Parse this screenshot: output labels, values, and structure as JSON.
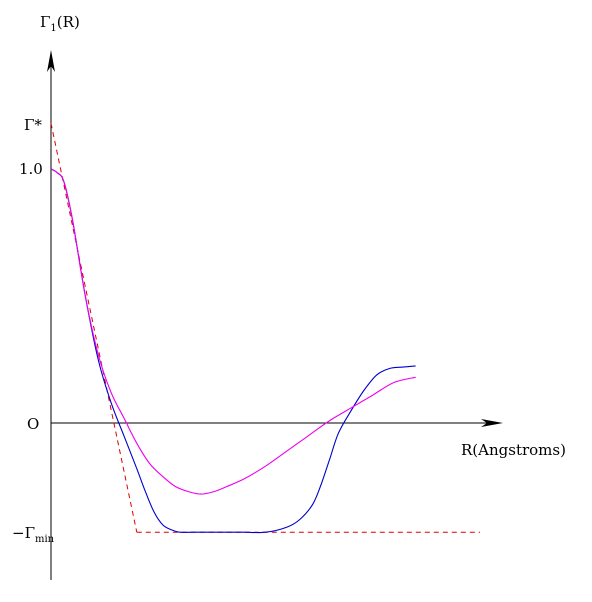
{
  "chart_data": {
    "type": "line",
    "title": "",
    "ylabel": {
      "main": "Γ",
      "sub": "1",
      "suffix": "(R)"
    },
    "xlabel": "R(Angstroms)",
    "y_tick_labels": {
      "gamma_star": "Γ*",
      "one": "1.0",
      "zero": "O",
      "gamma_min": {
        "prefix": "−Γ",
        "sub": "min"
      }
    },
    "y_values_marked": {
      "gamma_star": 1.18,
      "one": 1.0,
      "zero": 0.0,
      "gamma_min": -0.43
    },
    "xlim": [
      0,
      1.0
    ],
    "ylim": [
      -0.62,
      1.45
    ],
    "grid": false,
    "legend": "none",
    "colors": {
      "axis": "#000000",
      "series1": "#0000cc",
      "series2": "#ee00ee",
      "guide": "#dd0000"
    },
    "series": [
      {
        "color": "#0000cc",
        "x": [
          0,
          0.015,
          0.03,
          0.05,
          0.08,
          0.11,
          0.14,
          0.17,
          0.2,
          0.22,
          0.24,
          0.26,
          0.28,
          0.3,
          0.33,
          0.36,
          0.4,
          0.45,
          0.5,
          0.55,
          0.58,
          0.61,
          0.63,
          0.65,
          0.67,
          0.7,
          0.73,
          0.76,
          0.79,
          0.82,
          0.85
        ],
        "y": [
          1.0,
          0.985,
          0.95,
          0.8,
          0.5,
          0.25,
          0.08,
          -0.05,
          -0.18,
          -0.27,
          -0.35,
          -0.4,
          -0.42,
          -0.43,
          -0.43,
          -0.43,
          -0.43,
          -0.43,
          -0.43,
          -0.41,
          -0.38,
          -0.32,
          -0.24,
          -0.14,
          -0.04,
          0.05,
          0.13,
          0.19,
          0.215,
          0.22,
          0.225
        ]
      },
      {
        "color": "#ee00ee",
        "x": [
          0,
          0.015,
          0.03,
          0.05,
          0.08,
          0.11,
          0.14,
          0.17,
          0.2,
          0.23,
          0.26,
          0.29,
          0.32,
          0.35,
          0.38,
          0.41,
          0.45,
          0.5,
          0.55,
          0.6,
          0.65,
          0.7,
          0.75,
          0.8,
          0.85
        ],
        "y": [
          1.0,
          0.985,
          0.95,
          0.8,
          0.5,
          0.27,
          0.12,
          0.02,
          -0.08,
          -0.16,
          -0.21,
          -0.25,
          -0.27,
          -0.28,
          -0.27,
          -0.25,
          -0.22,
          -0.17,
          -0.11,
          -0.05,
          0.01,
          0.06,
          0.11,
          0.16,
          0.18
        ]
      }
    ],
    "guides": [
      {
        "kind": "tangent",
        "x": [
          0,
          0.2
        ],
        "y": [
          1.18,
          -0.43
        ]
      },
      {
        "kind": "hline",
        "x": [
          0.2,
          1.0
        ],
        "y": [
          -0.43,
          -0.43
        ]
      }
    ]
  }
}
